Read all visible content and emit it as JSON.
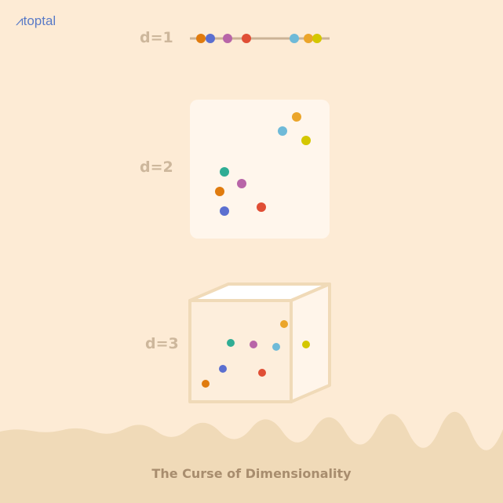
{
  "logo": {
    "text": "toptal"
  },
  "colors": {
    "orange": "#e07b0e",
    "blue": "#5b6fd0",
    "purple": "#b865a8",
    "red": "#e04e35",
    "lightblue": "#6fbad8",
    "amber": "#eba52a",
    "yellow": "#d4c700",
    "teal": "#2fad94"
  },
  "panels": [
    {
      "label": "d=1",
      "dots": [
        "orange",
        "blue",
        "purple",
        "red",
        "lightblue",
        "amber",
        "yellow"
      ]
    },
    {
      "label": "d=2",
      "dots": [
        "amber",
        "lightblue",
        "yellow",
        "teal",
        "purple",
        "orange",
        "blue",
        "red"
      ]
    },
    {
      "label": "d=3",
      "dots": [
        "amber",
        "teal",
        "purple",
        "lightblue",
        "yellow",
        "blue",
        "red",
        "orange"
      ]
    }
  ],
  "title": "The Curse of Dimensionality"
}
